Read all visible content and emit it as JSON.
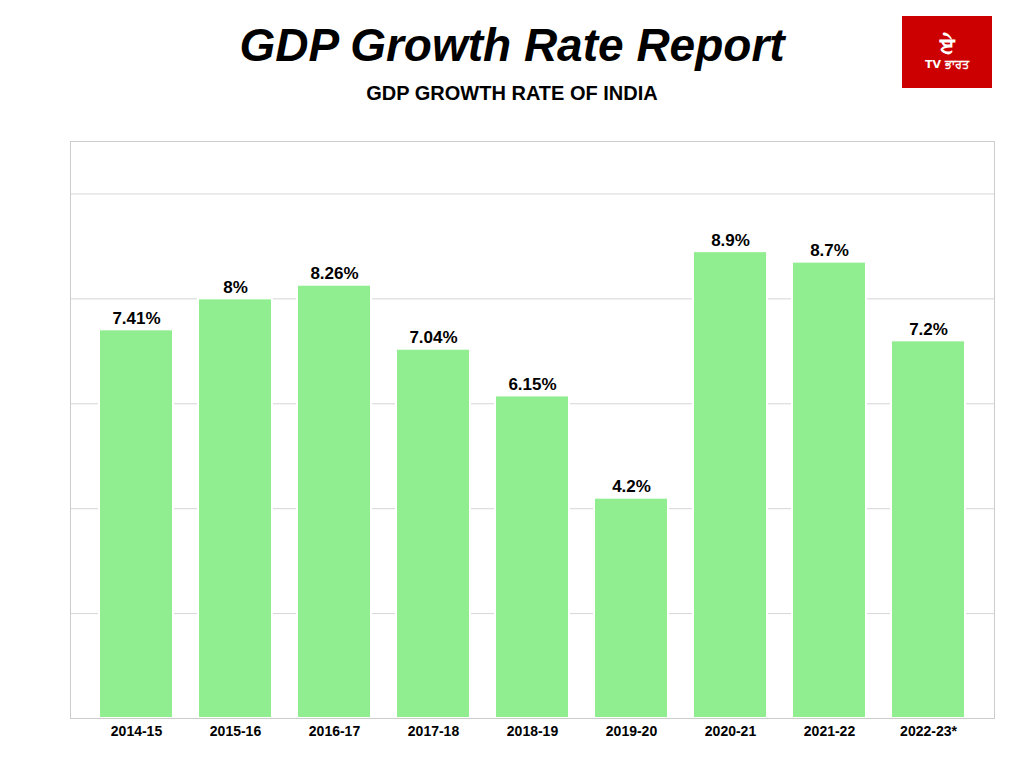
{
  "chart_data": {
    "type": "bar",
    "title": "GDP Growth Rate Report",
    "subtitle": "GDP GROWTH RATE OF INDIA",
    "categories": [
      "2014-15",
      "2015-16",
      "2016-17",
      "2017-18",
      "2018-19",
      "2019-20",
      "2020-21",
      "2021-22",
      "2022-23*"
    ],
    "values": [
      7.41,
      8.0,
      8.26,
      7.04,
      6.15,
      4.2,
      8.9,
      8.7,
      7.2
    ],
    "value_labels": [
      "7.41%",
      "8%",
      "8.26%",
      "7.04%",
      "6.15%",
      "4.2%",
      "8.9%",
      "8.7%",
      "7.2%"
    ],
    "data_labels": true,
    "color": "#90EE90",
    "ylim": [
      0,
      11
    ],
    "yticks": [
      0,
      2,
      4,
      6,
      8,
      10
    ],
    "grid": true,
    "tick_labels": "x",
    "annotations": [
      {
        "text": "ਏ",
        "color": "#cc0000"
      },
      {
        "text": "TV ਭਾਰਤ",
        "color": "#cc0000"
      }
    ]
  }
}
